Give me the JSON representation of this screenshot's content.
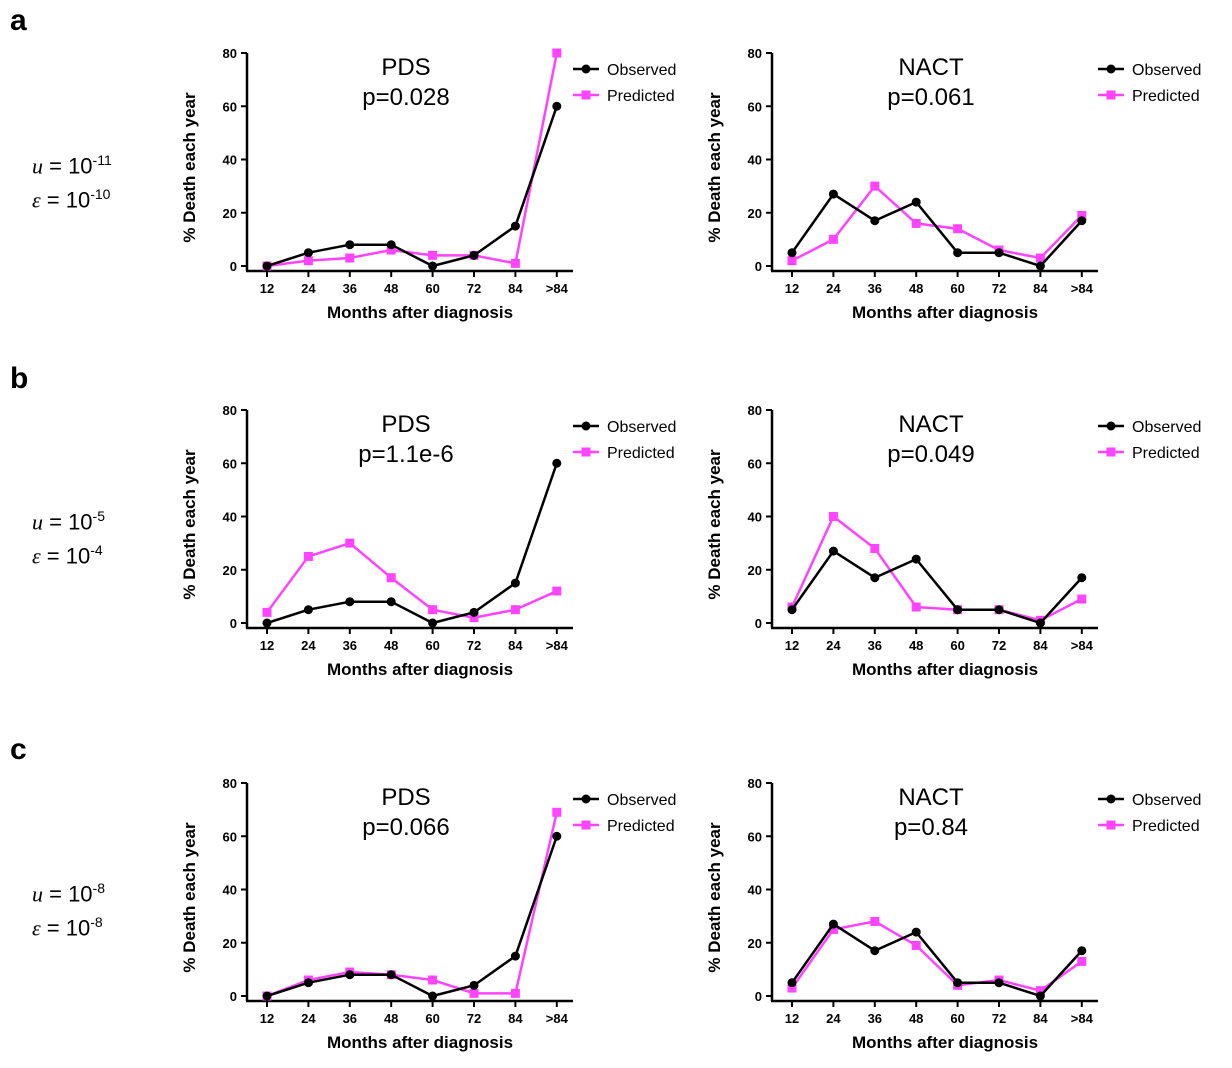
{
  "colors": {
    "observed": "#000000",
    "predicted": "#ff44ff"
  },
  "rows": [
    {
      "label": "a",
      "u": "u",
      "u_eq": " = 10",
      "u_exp": "-11",
      "e": "ε",
      "e_eq": " = 10",
      "e_exp": "-10"
    },
    {
      "label": "b",
      "u": "u",
      "u_eq": " = 10",
      "u_exp": "-5",
      "e": "ε",
      "e_eq": " = 10",
      "e_exp": "-4"
    },
    {
      "label": "c",
      "u": "u",
      "u_eq": " = 10",
      "u_exp": "-8",
      "e": "ε",
      "e_eq": " = 10",
      "e_exp": "-8"
    }
  ],
  "chart_data": [
    {
      "type": "line",
      "title": "PDS",
      "subtitle": "p=0.028",
      "categories": [
        "12",
        "24",
        "36",
        "48",
        "60",
        "72",
        "84",
        ">84"
      ],
      "xlabel": "Months after diagnosis",
      "ylabel": "% Death each year",
      "ylim": [
        0,
        80
      ],
      "yticks": [
        0,
        20,
        40,
        60,
        80
      ],
      "legend": "top-right",
      "series": [
        {
          "name": "Observed",
          "values": [
            0,
            5,
            8,
            8,
            0,
            4,
            15,
            60
          ]
        },
        {
          "name": "Predicted",
          "values": [
            0,
            2,
            3,
            6,
            4,
            4,
            1,
            80
          ]
        }
      ]
    },
    {
      "type": "line",
      "title": "NACT",
      "subtitle": "p=0.061",
      "categories": [
        "12",
        "24",
        "36",
        "48",
        "60",
        "72",
        "84",
        ">84"
      ],
      "xlabel": "Months after diagnosis",
      "ylabel": "% Death each year",
      "ylim": [
        0,
        80
      ],
      "yticks": [
        0,
        20,
        40,
        60,
        80
      ],
      "legend": "top-right",
      "series": [
        {
          "name": "Observed",
          "values": [
            5,
            27,
            17,
            24,
            5,
            5,
            0,
            17
          ]
        },
        {
          "name": "Predicted",
          "values": [
            2,
            10,
            30,
            16,
            14,
            6,
            3,
            19
          ]
        }
      ]
    },
    {
      "type": "line",
      "title": "PDS",
      "subtitle": "p=1.1e-6",
      "categories": [
        "12",
        "24",
        "36",
        "48",
        "60",
        "72",
        "84",
        ">84"
      ],
      "xlabel": "Months after diagnosis",
      "ylabel": "% Death each year",
      "ylim": [
        0,
        80
      ],
      "yticks": [
        0,
        20,
        40,
        60,
        80
      ],
      "legend": "top-right",
      "series": [
        {
          "name": "Observed",
          "values": [
            0,
            5,
            8,
            8,
            0,
            4,
            15,
            60
          ]
        },
        {
          "name": "Predicted",
          "values": [
            4,
            25,
            30,
            17,
            5,
            2,
            5,
            12
          ]
        }
      ]
    },
    {
      "type": "line",
      "title": "NACT",
      "subtitle": "p=0.049",
      "categories": [
        "12",
        "24",
        "36",
        "48",
        "60",
        "72",
        "84",
        ">84"
      ],
      "xlabel": "Months after diagnosis",
      "ylabel": "% Death each year",
      "ylim": [
        0,
        80
      ],
      "yticks": [
        0,
        20,
        40,
        60,
        80
      ],
      "legend": "top-right",
      "series": [
        {
          "name": "Observed",
          "values": [
            5,
            27,
            17,
            24,
            5,
            5,
            0,
            17
          ]
        },
        {
          "name": "Predicted",
          "values": [
            6,
            40,
            28,
            6,
            5,
            5,
            1,
            9
          ]
        }
      ]
    },
    {
      "type": "line",
      "title": "PDS",
      "subtitle": "p=0.066",
      "categories": [
        "12",
        "24",
        "36",
        "48",
        "60",
        "72",
        "84",
        ">84"
      ],
      "xlabel": "Months after diagnosis",
      "ylabel": "% Death each year",
      "ylim": [
        0,
        80
      ],
      "yticks": [
        0,
        20,
        40,
        60,
        80
      ],
      "legend": "top-right",
      "series": [
        {
          "name": "Observed",
          "values": [
            0,
            5,
            8,
            8,
            0,
            4,
            15,
            60
          ]
        },
        {
          "name": "Predicted",
          "values": [
            0,
            6,
            9,
            8,
            6,
            1,
            1,
            69
          ]
        }
      ]
    },
    {
      "type": "line",
      "title": "NACT",
      "subtitle": "p=0.84",
      "categories": [
        "12",
        "24",
        "36",
        "48",
        "60",
        "72",
        "84",
        ">84"
      ],
      "xlabel": "Months after diagnosis",
      "ylabel": "% Death each year",
      "ylim": [
        0,
        80
      ],
      "yticks": [
        0,
        20,
        40,
        60,
        80
      ],
      "legend": "top-right",
      "series": [
        {
          "name": "Observed",
          "values": [
            5,
            27,
            17,
            24,
            5,
            5,
            0,
            17
          ]
        },
        {
          "name": "Predicted",
          "values": [
            3,
            25,
            28,
            19,
            4,
            6,
            2,
            13
          ]
        }
      ]
    }
  ]
}
